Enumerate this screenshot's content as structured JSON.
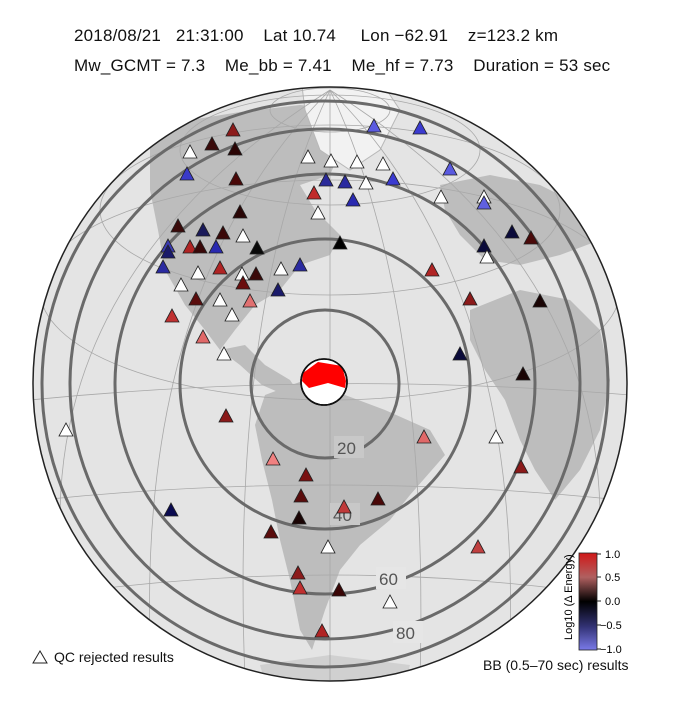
{
  "header": {
    "line1": "2018/08/21   21:31:00    Lat 10.74     Lon −62.91    z=123.2 km",
    "line2": "Mw_GCMT = 7.3    Me_bb = 7.41    Me_hf = 7.73    Duration = 53 sec"
  },
  "map": {
    "distance_rings": [
      "20",
      "40",
      "60",
      "80"
    ],
    "colorbar": {
      "title": "Log10 (Δ Energy)",
      "ticks": [
        "1.0",
        "0.5",
        "0.0",
        "−0.5",
        "−1.0"
      ],
      "colors": {
        "high": "#d42a2a",
        "mid": "#000000",
        "low": "#6a6aee"
      }
    }
  },
  "legend": {
    "qc_rejected": "QC rejected results",
    "bb_label": "BB (0.5–70 sec) results"
  }
}
